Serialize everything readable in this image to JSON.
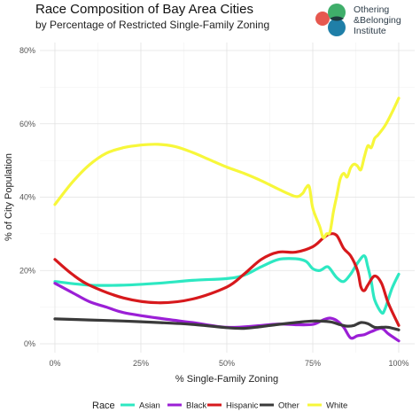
{
  "title": "Race Composition of Bay Area Cities",
  "subtitle": "by Percentage of Restricted Single-Family Zoning",
  "logo": {
    "lines": [
      "Othering",
      "&Belonging",
      "Institute"
    ],
    "colors": {
      "green": "#3fae6a",
      "red": "#e6584f",
      "blue": "#1f7fa8",
      "dark": "#1d3b3f"
    }
  },
  "chart_data": {
    "type": "line",
    "title": "Race Composition of Bay Area Cities",
    "subtitle": "by Percentage of Restricted Single-Family Zoning",
    "xlabel": "% Single-Family Zoning",
    "ylabel": "% of City Population",
    "xlim": [
      0,
      100
    ],
    "ylim": [
      0,
      80
    ],
    "x_ticks": [
      0,
      25,
      50,
      75,
      100
    ],
    "x_tick_labels": [
      "0%",
      "25%",
      "50%",
      "75%",
      "100%"
    ],
    "y_ticks": [
      0,
      20,
      40,
      60,
      80
    ],
    "y_tick_labels": [
      "0%",
      "20%",
      "40%",
      "60%",
      "80%"
    ],
    "grid": true,
    "legend": {
      "title": "Race",
      "position": "bottom"
    },
    "series": [
      {
        "name": "Asian",
        "color": "#2de8c2",
        "points": [
          [
            0,
            17
          ],
          [
            10,
            16
          ],
          [
            20,
            16
          ],
          [
            30,
            16.5
          ],
          [
            40,
            17.3
          ],
          [
            50,
            17.8
          ],
          [
            55,
            18.7
          ],
          [
            60,
            21
          ],
          [
            65,
            23
          ],
          [
            70,
            23.2
          ],
          [
            73,
            22.5
          ],
          [
            75,
            20.5
          ],
          [
            77,
            20
          ],
          [
            79,
            21
          ],
          [
            80,
            20.5
          ],
          [
            82,
            18
          ],
          [
            84,
            17
          ],
          [
            86,
            19
          ],
          [
            88,
            22
          ],
          [
            90,
            24
          ],
          [
            91,
            21
          ],
          [
            92,
            17
          ],
          [
            93,
            12
          ],
          [
            95,
            8.5
          ],
          [
            96,
            9.5
          ],
          [
            98,
            15
          ],
          [
            100,
            19
          ]
        ]
      },
      {
        "name": "Black",
        "color": "#9b1fd6",
        "points": [
          [
            0,
            16.5
          ],
          [
            5,
            14
          ],
          [
            10,
            11.5
          ],
          [
            15,
            10
          ],
          [
            20,
            8.5
          ],
          [
            30,
            7
          ],
          [
            40,
            5.8
          ],
          [
            50,
            4.5
          ],
          [
            60,
            5
          ],
          [
            65,
            5.4
          ],
          [
            70,
            5.2
          ],
          [
            75,
            5.3
          ],
          [
            78,
            6.5
          ],
          [
            80,
            7
          ],
          [
            82,
            6.3
          ],
          [
            84,
            4.5
          ],
          [
            86,
            1.6
          ],
          [
            88,
            2.2
          ],
          [
            90,
            2.5
          ],
          [
            92,
            3.3
          ],
          [
            95,
            4.2
          ],
          [
            97,
            2.7
          ],
          [
            100,
            0.8
          ]
        ]
      },
      {
        "name": "Hispanic",
        "color": "#d7191c",
        "points": [
          [
            0,
            23
          ],
          [
            5,
            19
          ],
          [
            10,
            16
          ],
          [
            20,
            12.5
          ],
          [
            30,
            11.2
          ],
          [
            40,
            12.2
          ],
          [
            50,
            15.5
          ],
          [
            55,
            19
          ],
          [
            60,
            23
          ],
          [
            65,
            25
          ],
          [
            70,
            25
          ],
          [
            75,
            26.5
          ],
          [
            78,
            28.8
          ],
          [
            80,
            30
          ],
          [
            82,
            29.5
          ],
          [
            84,
            26
          ],
          [
            86,
            24
          ],
          [
            88,
            20
          ],
          [
            89,
            15.5
          ],
          [
            90,
            14.5
          ],
          [
            91,
            16
          ],
          [
            93,
            18.5
          ],
          [
            95,
            16.5
          ],
          [
            97,
            11
          ],
          [
            100,
            5
          ]
        ]
      },
      {
        "name": "Other",
        "color": "#3a3a3a",
        "points": [
          [
            0,
            6.8
          ],
          [
            10,
            6.5
          ],
          [
            20,
            6.2
          ],
          [
            30,
            5.8
          ],
          [
            40,
            5.3
          ],
          [
            50,
            4.4
          ],
          [
            55,
            4.2
          ],
          [
            60,
            4.7
          ],
          [
            65,
            5.3
          ],
          [
            70,
            5.8
          ],
          [
            75,
            6.2
          ],
          [
            80,
            6
          ],
          [
            83,
            5.2
          ],
          [
            85,
            4.8
          ],
          [
            87,
            5
          ],
          [
            89,
            5.8
          ],
          [
            91,
            5.5
          ],
          [
            93,
            4.5
          ],
          [
            95,
            4.5
          ],
          [
            97,
            4.5
          ],
          [
            100,
            3.8
          ]
        ]
      },
      {
        "name": "White",
        "color": "#f7f73a",
        "points": [
          [
            0,
            38
          ],
          [
            5,
            44
          ],
          [
            10,
            48.8
          ],
          [
            15,
            52
          ],
          [
            20,
            53.5
          ],
          [
            25,
            54.2
          ],
          [
            30,
            54.4
          ],
          [
            35,
            53.8
          ],
          [
            40,
            52.2
          ],
          [
            45,
            50.2
          ],
          [
            50,
            48.2
          ],
          [
            55,
            46.5
          ],
          [
            60,
            44.5
          ],
          [
            65,
            42.2
          ],
          [
            70,
            40.2
          ],
          [
            72,
            41
          ],
          [
            73,
            42.5
          ],
          [
            74,
            42.8
          ],
          [
            75,
            37
          ],
          [
            77,
            32
          ],
          [
            78,
            29
          ],
          [
            79,
            30
          ],
          [
            80,
            30.5
          ],
          [
            81,
            36
          ],
          [
            82,
            40.5
          ],
          [
            83,
            45
          ],
          [
            84,
            46.5
          ],
          [
            85,
            45.5
          ],
          [
            86,
            48
          ],
          [
            87,
            49
          ],
          [
            88,
            48.5
          ],
          [
            89,
            47.5
          ],
          [
            90,
            51
          ],
          [
            91,
            54
          ],
          [
            92,
            53.5
          ],
          [
            93,
            56
          ],
          [
            94,
            57
          ],
          [
            96,
            59.5
          ],
          [
            98,
            63
          ],
          [
            100,
            67
          ]
        ]
      }
    ]
  }
}
